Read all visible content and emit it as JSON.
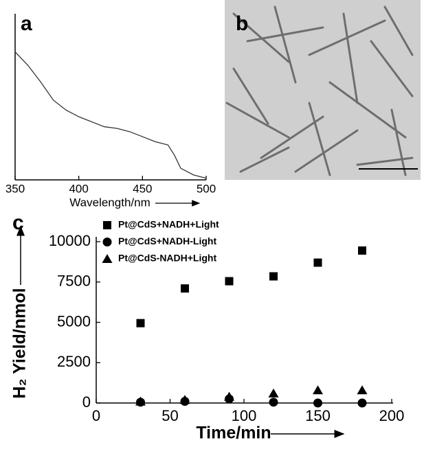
{
  "chart_data": [
    {
      "type": "line",
      "panel": "a",
      "xlabel": "Wavelength/nm",
      "x": [
        350,
        360,
        370,
        380,
        390,
        400,
        410,
        420,
        430,
        440,
        450,
        460,
        470,
        475,
        480,
        490,
        500
      ],
      "values": [
        0.77,
        0.69,
        0.59,
        0.48,
        0.42,
        0.38,
        0.35,
        0.32,
        0.31,
        0.29,
        0.26,
        0.23,
        0.21,
        0.15,
        0.07,
        0.03,
        0.01
      ],
      "color": "#333333",
      "xlim": [
        350,
        500
      ],
      "xticks": [
        350,
        400,
        450,
        500
      ],
      "ylim": [
        0,
        1
      ]
    },
    {
      "type": "image",
      "panel": "b"
    },
    {
      "type": "scatter",
      "panel": "c",
      "xlabel": "Time/min",
      "ylabel": "H₂ Yield/nmol",
      "x": [
        30,
        60,
        90,
        120,
        150,
        180
      ],
      "series": [
        {
          "name": "Pt@CdS+NADH+Light",
          "color": "#000000",
          "marker": "square",
          "values": [
            4950,
            7100,
            7550,
            7850,
            8700,
            9450
          ]
        },
        {
          "name": "Pt@CdS+NADH-Light",
          "color": "#000000",
          "marker": "circle",
          "values": [
            50,
            100,
            250,
            50,
            0,
            0
          ]
        },
        {
          "name": "Pt@CdS-NADH+Light",
          "color": "#000000",
          "marker": "triangle",
          "values": [
            100,
            200,
            400,
            600,
            800,
            800
          ]
        }
      ],
      "xlim": [
        0,
        200
      ],
      "xticks": [
        0,
        50,
        100,
        150,
        200
      ],
      "ylim": [
        0,
        10000
      ],
      "yticks": [
        0,
        2500,
        5000,
        7500,
        10000
      ]
    }
  ]
}
